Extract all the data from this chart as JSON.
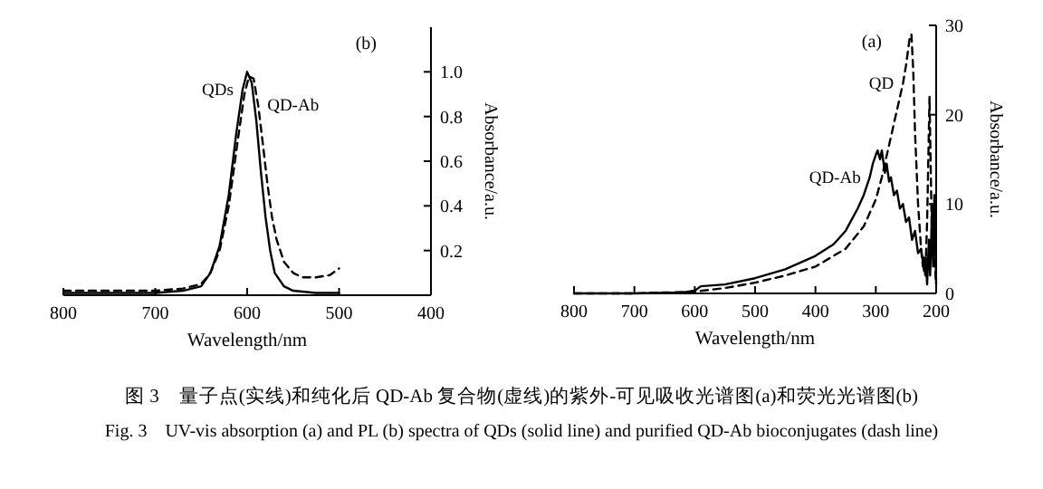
{
  "chart_data": [
    {
      "type": "line",
      "xlabel": "Wavelength/nm",
      "ylabel": "Absorbance/a.u.",
      "annotations": [
        "(b)"
      ],
      "xlim": [
        800,
        400
      ],
      "xticks": [
        800,
        700,
        600,
        500,
        400
      ],
      "ylim": [
        0,
        1.2
      ],
      "yticks": [
        0.2,
        0.4,
        0.6,
        0.8,
        {
          "value": 1,
          "label": "1.0"
        }
      ],
      "grid": false,
      "legend": false,
      "series": [
        {
          "name": "QDs",
          "color": "#000000",
          "line_style": "solid",
          "x": [
            800,
            750,
            700,
            670,
            650,
            640,
            630,
            620,
            612,
            605,
            600,
            595,
            590,
            585,
            580,
            575,
            570,
            560,
            550,
            525,
            500
          ],
          "values": [
            0.01,
            0.01,
            0.01,
            0.02,
            0.04,
            0.1,
            0.22,
            0.45,
            0.72,
            0.92,
            1.0,
            0.95,
            0.78,
            0.55,
            0.35,
            0.2,
            0.1,
            0.04,
            0.02,
            0.01,
            0.01
          ]
        },
        {
          "name": "QD-Ab",
          "color": "#000000",
          "line_style": "dashed",
          "x": [
            800,
            750,
            700,
            670,
            650,
            640,
            630,
            620,
            610,
            603,
            598,
            593,
            588,
            583,
            578,
            573,
            568,
            560,
            550,
            540,
            525,
            510,
            500
          ],
          "values": [
            0.02,
            0.02,
            0.02,
            0.03,
            0.05,
            0.1,
            0.2,
            0.4,
            0.7,
            0.9,
            0.98,
            0.97,
            0.85,
            0.68,
            0.5,
            0.35,
            0.25,
            0.15,
            0.1,
            0.08,
            0.08,
            0.09,
            0.12
          ]
        }
      ]
    },
    {
      "type": "line",
      "xlabel": "Wavelength/nm",
      "ylabel": "Absorbance/a.u.",
      "annotations": [
        "(a)"
      ],
      "xlim": [
        800,
        200
      ],
      "xticks": [
        800,
        700,
        600,
        500,
        400,
        300,
        200
      ],
      "ylim": [
        0,
        30
      ],
      "yticks": [
        0,
        10,
        20,
        30
      ],
      "grid": false,
      "legend": false,
      "series": [
        {
          "name": "QD",
          "color": "#000000",
          "line_style": "dashed",
          "x": [
            800,
            700,
            600,
            550,
            500,
            450,
            400,
            350,
            320,
            300,
            290,
            280,
            270,
            260,
            255,
            250,
            247,
            244,
            241,
            238,
            235,
            230,
            225,
            222,
            220,
            218,
            215,
            213,
            211,
            209,
            207,
            205,
            203,
            200
          ],
          "values": [
            0,
            0,
            0.2,
            0.6,
            1.2,
            2,
            3,
            5,
            7.5,
            10.5,
            13,
            16,
            19,
            22,
            23.5,
            25.5,
            27,
            28.5,
            29,
            25,
            18,
            10,
            5,
            3,
            4,
            2,
            8,
            15,
            22,
            14,
            6,
            10,
            4,
            1
          ]
        },
        {
          "name": "QD-Ab",
          "color": "#000000",
          "line_style": "solid",
          "x": [
            800,
            700,
            620,
            600,
            590,
            550,
            500,
            450,
            400,
            370,
            350,
            330,
            320,
            310,
            305,
            300,
            297,
            293,
            290,
            285,
            282,
            278,
            275,
            270,
            265,
            260,
            255,
            250,
            245,
            240,
            235,
            230,
            225,
            220,
            217,
            215,
            212,
            210,
            207,
            205,
            203,
            200
          ],
          "values": [
            0,
            0,
            0.1,
            0.3,
            0.8,
            1,
            1.7,
            2.7,
            4.2,
            5.5,
            7,
            9.5,
            11,
            13,
            14.5,
            15.5,
            16,
            15,
            16,
            13.5,
            14.5,
            12.5,
            13,
            11,
            11.5,
            9.5,
            10,
            8,
            8.5,
            6,
            7,
            4.5,
            5,
            2.5,
            4,
            1,
            6,
            2,
            9,
            3,
            11,
            1
          ]
        }
      ]
    },
    {
      "type": "other",
      "annotations": [
        "图 3　量子点(实线)和纯化后 QD-Ab 复合物(虚线)的紫外-可见吸收光谱图(a)和荧光光谱图(b)",
        "Fig. 3　UV-vis absorption (a) and PL (b) spectra of QDs (solid line) and purified QD-Ab bioconjugates (dash line)"
      ]
    }
  ]
}
